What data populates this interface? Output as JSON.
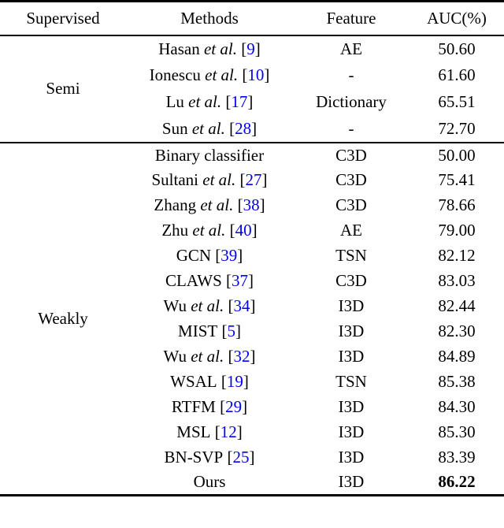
{
  "table": {
    "columns": [
      "Supervised",
      "Methods",
      "Feature",
      "AUC(%)"
    ],
    "etal_text": "et al.",
    "bracket_open": "[",
    "bracket_close": "]",
    "groups": [
      {
        "label": "Semi",
        "rows": [
          {
            "name": "Hasan",
            "etal": true,
            "cite": "9",
            "feature": "AE",
            "auc": "50.60",
            "bold": false
          },
          {
            "name": "Ionescu",
            "etal": true,
            "cite": "10",
            "feature": "-",
            "auc": "61.60",
            "bold": false
          },
          {
            "name": "Lu",
            "etal": true,
            "cite": "17",
            "feature": "Dictionary",
            "auc": "65.51",
            "bold": false
          },
          {
            "name": "Sun",
            "etal": true,
            "cite": "28",
            "feature": "-",
            "auc": "72.70",
            "bold": false
          }
        ]
      },
      {
        "label": "Weakly",
        "rows": [
          {
            "name": "Binary classifier",
            "etal": false,
            "cite": "",
            "feature": "C3D",
            "auc": "50.00",
            "bold": false
          },
          {
            "name": "Sultani",
            "etal": true,
            "cite": "27",
            "feature": "C3D",
            "auc": "75.41",
            "bold": false
          },
          {
            "name": "Zhang",
            "etal": true,
            "cite": "38",
            "feature": "C3D",
            "auc": "78.66",
            "bold": false
          },
          {
            "name": "Zhu",
            "etal": true,
            "cite": "40",
            "feature": "AE",
            "auc": "79.00",
            "bold": false
          },
          {
            "name": "GCN",
            "etal": false,
            "cite": "39",
            "feature": "TSN",
            "auc": "82.12",
            "bold": false
          },
          {
            "name": "CLAWS",
            "etal": false,
            "cite": "37",
            "feature": "C3D",
            "auc": "83.03",
            "bold": false
          },
          {
            "name": "Wu",
            "etal": true,
            "cite": "34",
            "feature": "I3D",
            "auc": "82.44",
            "bold": false
          },
          {
            "name": "MIST",
            "etal": false,
            "cite": "5",
            "feature": "I3D",
            "auc": "82.30",
            "bold": false
          },
          {
            "name": "Wu",
            "etal": true,
            "cite": "32",
            "feature": "I3D",
            "auc": "84.89",
            "bold": false
          },
          {
            "name": "WSAL",
            "etal": false,
            "cite": "19",
            "feature": "TSN",
            "auc": "85.38",
            "bold": false
          },
          {
            "name": "RTFM",
            "etal": false,
            "cite": "29",
            "feature": "I3D",
            "auc": "84.30",
            "bold": false
          },
          {
            "name": "MSL",
            "etal": false,
            "cite": "12",
            "feature": "I3D",
            "auc": "85.30",
            "bold": false
          },
          {
            "name": "BN-SVP",
            "etal": false,
            "cite": "25",
            "feature": "I3D",
            "auc": "83.39",
            "bold": false
          },
          {
            "name": "Ours",
            "etal": false,
            "cite": "",
            "feature": "I3D",
            "auc": "86.22",
            "bold": true
          }
        ]
      }
    ],
    "colors": {
      "citation_blue": "#0000EE",
      "text": "#000000",
      "rule": "#000000"
    }
  }
}
